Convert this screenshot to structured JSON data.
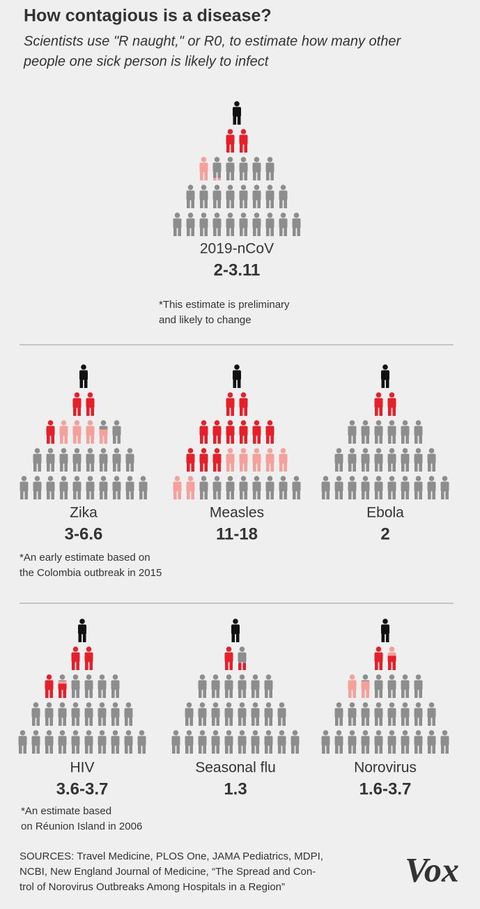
{
  "header": {
    "title": "How contagious is a disease?",
    "subtitle": [
      "Scientists use \"R naught,\" or R0, to estimate how many other",
      "people one sick person is likely to infect"
    ]
  },
  "diseases": [
    {
      "name": "2019-nCoV",
      "r0": [
        2,
        3.11
      ],
      "r0_label": "2-3.11",
      "note": [
        "*This estimate is preliminary",
        "and likely to change"
      ]
    },
    {
      "name": "Zika",
      "r0": [
        3,
        6.6
      ],
      "r0_label": "3-6.6",
      "note": [
        "*An early estimate based on",
        "the Colombia outbreak in 2015"
      ]
    },
    {
      "name": "Measles",
      "r0": [
        11,
        18
      ],
      "r0_label": "11-18"
    },
    {
      "name": "Ebola",
      "r0": [
        2
      ],
      "r0_label": "2"
    },
    {
      "name": "HIV",
      "r0": [
        3.6,
        3.7
      ],
      "r0_label": "3.6-3.7",
      "note": [
        "*An estimate based",
        "on Réunion Island in 2006"
      ]
    },
    {
      "name": "Seasonal flu",
      "r0": [
        1.3
      ],
      "r0_label": "1.3"
    },
    {
      "name": "Norovirus",
      "r0": [
        1.6,
        3.7
      ],
      "r0_label": "1.6-3.7"
    }
  ],
  "sources": [
    "SOURCES: Travel Medicine, PLOS One, JAMA Pediatrics, MDPI,",
    "NCBI, New England Journal of Medicine, “The Spread and Con-",
    "trol of Norovirus Outbreaks Among Hospitals in a Region”"
  ],
  "logo": "Vox"
}
